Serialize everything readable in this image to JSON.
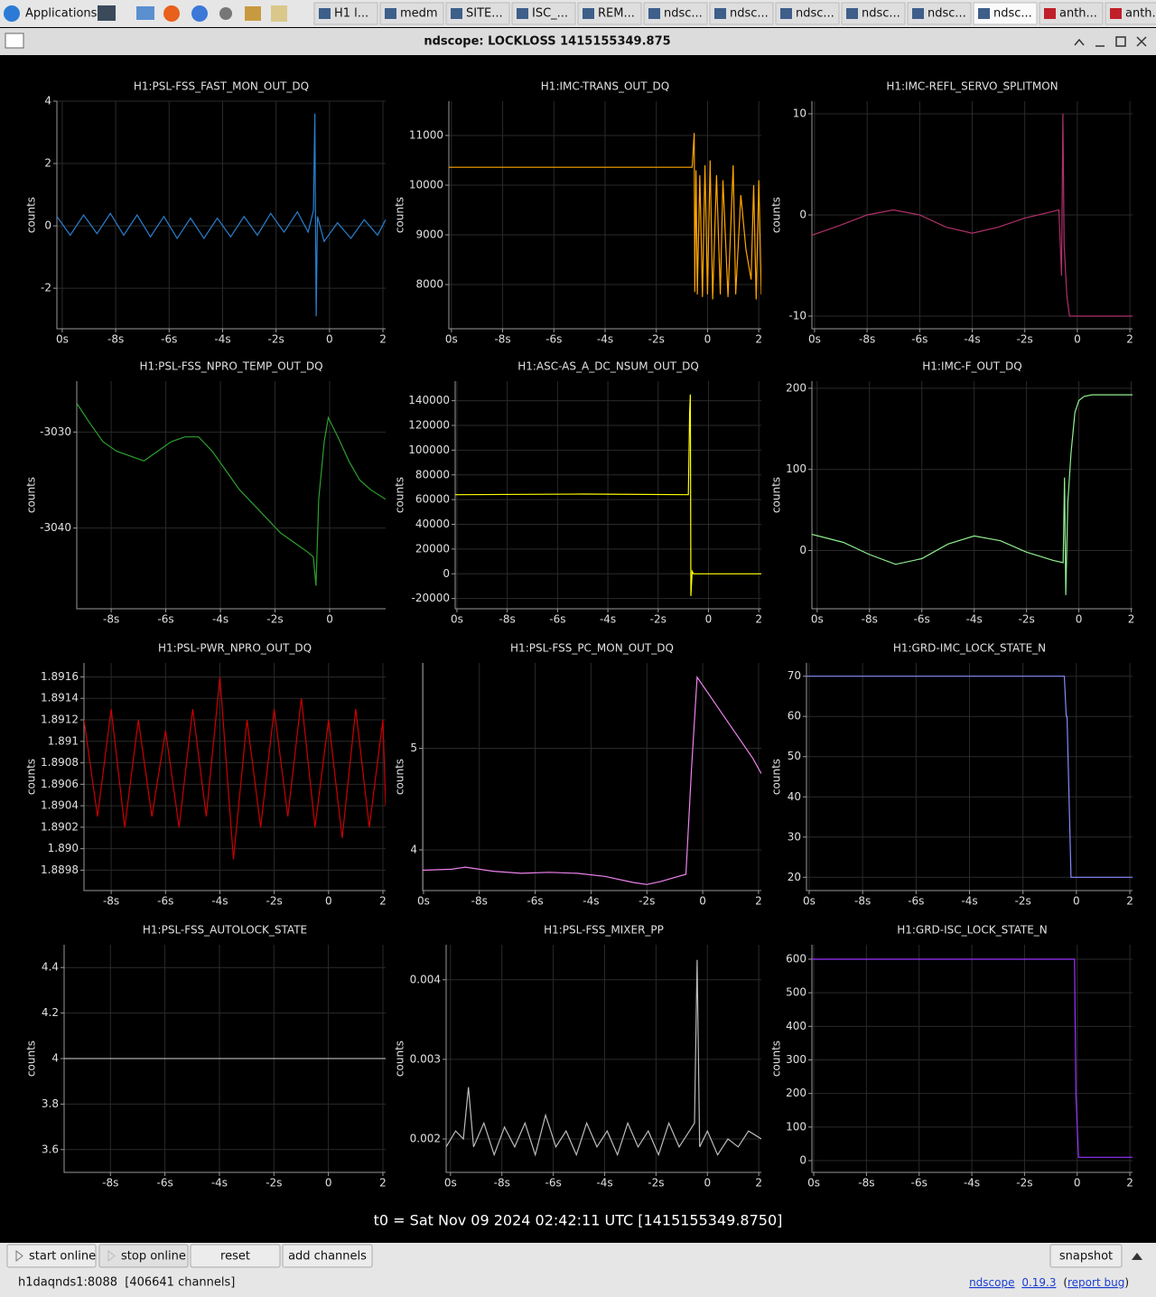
{
  "taskbar": {
    "items": [
      "Applications",
      "H1 l...",
      "medm",
      "SITE...",
      "ISC_...",
      "REM...",
      "ndsc...",
      "ndsc...",
      "ndsc...",
      "ndsc...",
      "ndsc...",
      "ndsc...",
      "anth...",
      "anth..."
    ]
  },
  "window": {
    "title": "ndscope: LOCKLOSS 1415155349.875"
  },
  "chart_data": [
    {
      "type": "line",
      "title": "H1:PSL-FSS_FAST_MON_OUT_DQ",
      "ylabel": "counts",
      "color": "#2a7fcf",
      "xlim": [
        -10.2,
        2.1
      ],
      "ylim": [
        -3.3,
        4.0
      ],
      "yticks": [
        4,
        2,
        0,
        -2
      ],
      "xticks": [
        {
          "value": -10,
          "label": "0s"
        },
        {
          "value": -8,
          "label": "-8s"
        },
        {
          "value": -6,
          "label": "-6s"
        },
        {
          "value": -4,
          "label": "-4s"
        },
        {
          "value": -2,
          "label": "-2s"
        },
        0,
        2
      ],
      "x": [
        -10.2,
        -9.7,
        -9.2,
        -8.7,
        -8.2,
        -7.7,
        -7.2,
        -6.7,
        -6.2,
        -5.7,
        -5.2,
        -4.7,
        -4.2,
        -3.7,
        -3.2,
        -2.7,
        -2.2,
        -1.7,
        -1.2,
        -0.8,
        -0.6,
        -0.55,
        -0.5,
        -0.45,
        -0.2,
        0.3,
        0.8,
        1.3,
        1.8,
        2.1
      ],
      "values": [
        0.3,
        -0.3,
        0.35,
        -0.25,
        0.4,
        -0.3,
        0.35,
        -0.35,
        0.3,
        -0.4,
        0.25,
        -0.4,
        0.25,
        -0.35,
        0.3,
        -0.3,
        0.4,
        -0.2,
        0.45,
        -0.2,
        0.5,
        3.6,
        -2.9,
        0.3,
        -0.5,
        0.1,
        -0.4,
        0.2,
        -0.3,
        0.2
      ]
    },
    {
      "type": "line",
      "title": "H1:IMC-TRANS_OUT_DQ",
      "ylabel": "counts",
      "color": "#ffa500",
      "xlim": [
        -10.1,
        2.1
      ],
      "ylim": [
        7110,
        11690
      ],
      "yticks": [
        11000,
        10000,
        9000,
        8000
      ],
      "xticks": [
        {
          "value": -10,
          "label": "0s"
        },
        {
          "value": -8,
          "label": "-8s"
        },
        {
          "value": -6,
          "label": "-6s"
        },
        {
          "value": -4,
          "label": "-4s"
        },
        {
          "value": -2,
          "label": "-2s"
        },
        0,
        2
      ],
      "x": [
        -10.1,
        -0.6,
        -0.52,
        -0.5,
        -0.45,
        -0.4,
        -0.3,
        -0.2,
        -0.1,
        0,
        0.1,
        0.2,
        0.35,
        0.5,
        0.6,
        0.8,
        1.0,
        1.1,
        1.3,
        1.5,
        1.7,
        1.8,
        1.9,
        2.0,
        2.1
      ],
      "values": [
        10360,
        10360,
        11050,
        7850,
        10300,
        7800,
        10200,
        7750,
        10400,
        7800,
        10500,
        7700,
        10200,
        7800,
        10100,
        7750,
        10400,
        7800,
        9800,
        8700,
        8100,
        10000,
        7700,
        10100,
        7800
      ]
    },
    {
      "type": "line",
      "title": "H1:IMC-REFL_SERVO_SPLITMON",
      "ylabel": "counts",
      "color": "#b0306a",
      "xlim": [
        -10.1,
        2.1
      ],
      "ylim": [
        -11.25,
        11.25
      ],
      "yticks": [
        10,
        0,
        -10
      ],
      "xticks": [
        {
          "value": -10,
          "label": "0s"
        },
        {
          "value": -8,
          "label": "-8s"
        },
        {
          "value": -6,
          "label": "-6s"
        },
        {
          "value": -4,
          "label": "-4s"
        },
        {
          "value": -2,
          "label": "-2s"
        },
        0,
        2
      ],
      "x": [
        -10.1,
        -9,
        -8,
        -7,
        -6,
        -5,
        -4,
        -3,
        -2,
        -1,
        -0.7,
        -0.6,
        -0.55,
        -0.5,
        -0.4,
        -0.3,
        2.1
      ],
      "values": [
        -2,
        -1,
        0,
        0.5,
        0,
        -1.2,
        -1.8,
        -1.2,
        -0.3,
        0.3,
        0.5,
        -6,
        10,
        -3,
        -8,
        -10,
        -10
      ]
    },
    {
      "type": "line",
      "title": "H1:PSL-FSS_NPRO_TEMP_OUT_DQ",
      "ylabel": "counts",
      "color": "#2ca02c",
      "xlim": [
        -9.26,
        2.05
      ],
      "ylim": [
        -3048.4,
        -3024.7
      ],
      "yticks": [
        -3030,
        -3040
      ],
      "xticks": [
        {
          "value": -8,
          "label": "-8s"
        },
        {
          "value": -6,
          "label": "-6s"
        },
        {
          "value": -4,
          "label": "-4s"
        },
        {
          "value": -2,
          "label": "-2s"
        },
        0
      ],
      "x": [
        -9.26,
        -8.8,
        -8.3,
        -7.8,
        -7.3,
        -6.8,
        -6.3,
        -5.8,
        -5.3,
        -4.8,
        -4.3,
        -3.8,
        -3.3,
        -2.8,
        -2.3,
        -1.8,
        -1.3,
        -0.8,
        -0.6,
        -0.5,
        -0.4,
        -0.2,
        -0.05,
        0.3,
        0.7,
        1.1,
        1.5,
        2.05
      ],
      "values": [
        -3027,
        -3029,
        -3031,
        -3032,
        -3032.5,
        -3033,
        -3032,
        -3031,
        -3030.5,
        -3030.5,
        -3032,
        -3034,
        -3036,
        -3037.5,
        -3039,
        -3040.5,
        -3041.5,
        -3042.5,
        -3043,
        -3046,
        -3037,
        -3031,
        -3028.5,
        -3030.5,
        -3033,
        -3035,
        -3036,
        -3037
      ]
    },
    {
      "type": "line",
      "title": "H1:ASC-AS_A_DC_NSUM_OUT_DQ",
      "ylabel": "counts",
      "color": "#ffff00",
      "xlim": [
        -10.07,
        2.1
      ],
      "ylim": [
        -28300,
        155800
      ],
      "yticks": [
        140000,
        120000,
        100000,
        80000,
        60000,
        40000,
        20000,
        0,
        -20000
      ],
      "xticks": [
        {
          "value": -10,
          "label": "0s"
        },
        {
          "value": -8,
          "label": "-8s"
        },
        {
          "value": -6,
          "label": "-6s"
        },
        {
          "value": -4,
          "label": "-4s"
        },
        {
          "value": -2,
          "label": "-2s"
        },
        0,
        2
      ],
      "x": [
        -10.07,
        -5,
        -0.8,
        -0.75,
        -0.72,
        -0.7,
        -0.65,
        -0.6,
        2.1
      ],
      "values": [
        64000,
        64500,
        64000,
        130000,
        145000,
        -18000,
        2000,
        0,
        0
      ]
    },
    {
      "type": "line",
      "title": "H1:IMC-F_OUT_DQ",
      "ylabel": "counts",
      "color": "#90ee90",
      "xlim": [
        -10.2,
        2.05
      ],
      "ylim": [
        -71.8,
        208.8
      ],
      "yticks": [
        200,
        100,
        0
      ],
      "xticks": [
        {
          "value": -10,
          "label": "0s"
        },
        {
          "value": -8,
          "label": "-8s"
        },
        {
          "value": -6,
          "label": "-6s"
        },
        {
          "value": -4,
          "label": "-4s"
        },
        {
          "value": -2,
          "label": "-2s"
        },
        0,
        2
      ],
      "x": [
        -10.2,
        -9,
        -8,
        -7,
        -6,
        -5,
        -4,
        -3,
        -2,
        -1,
        -0.6,
        -0.55,
        -0.5,
        -0.42,
        -0.3,
        -0.15,
        0,
        0.2,
        0.5,
        2.05
      ],
      "values": [
        20,
        10,
        -5,
        -17,
        -10,
        8,
        18,
        12,
        -2,
        -12,
        -15,
        90,
        -55,
        60,
        120,
        170,
        185,
        190,
        192,
        192
      ]
    },
    {
      "type": "line",
      "title": "H1:PSL-PWR_NPRO_OUT_DQ",
      "ylabel": "counts",
      "color": "#cc0000",
      "xlim": [
        -9.0,
        2.1
      ],
      "ylim": [
        1.88961,
        1.89173
      ],
      "yticks": [
        1.8916,
        1.8914,
        1.8912,
        1.891,
        1.8908,
        1.8906,
        1.8904,
        1.8902,
        {
          "value": 1.89,
          "label": "1.890"
        },
        1.8898
      ],
      "xticks": [
        {
          "value": -8,
          "label": "-8s"
        },
        {
          "value": -6,
          "label": "-6s"
        },
        {
          "value": -4,
          "label": "-4s"
        },
        {
          "value": -2,
          "label": "-2s"
        },
        0,
        2
      ],
      "x": [
        -9,
        -8.5,
        -8,
        -7.5,
        -7,
        -6.5,
        -6,
        -5.5,
        -5,
        -4.5,
        -4,
        -3.5,
        -3,
        -2.5,
        -2,
        -1.5,
        -1,
        -0.5,
        0,
        0.5,
        1,
        1.5,
        2,
        2.1
      ],
      "values": [
        1.8912,
        1.8903,
        1.8913,
        1.8902,
        1.8912,
        1.8903,
        1.8911,
        1.8902,
        1.8913,
        1.8903,
        1.8916,
        1.8899,
        1.8912,
        1.8902,
        1.8913,
        1.8903,
        1.8914,
        1.8902,
        1.8912,
        1.8901,
        1.8913,
        1.8902,
        1.8912,
        1.8904
      ]
    },
    {
      "type": "line",
      "title": "H1:PSL-FSS_PC_MON_OUT_DQ",
      "ylabel": "counts",
      "color": "#ee82ee",
      "xlim": [
        -10.03,
        2.1
      ],
      "ylim": [
        3.6,
        5.84
      ],
      "yticks": [
        5,
        4
      ],
      "xticks": [
        {
          "value": -10,
          "label": "0s"
        },
        {
          "value": -8,
          "label": "-8s"
        },
        {
          "value": -6,
          "label": "-6s"
        },
        {
          "value": -4,
          "label": "-4s"
        },
        {
          "value": -2,
          "label": "-2s"
        },
        0,
        2
      ],
      "x": [
        -10.03,
        -9,
        -8.5,
        -7.5,
        -6.5,
        -5.5,
        -4.5,
        -3.5,
        -2.5,
        -2,
        -1.5,
        -1,
        -0.6,
        -0.4,
        -0.2,
        0.3,
        0.8,
        1.3,
        1.8,
        2.1
      ],
      "values": [
        3.8,
        3.81,
        3.83,
        3.79,
        3.77,
        3.78,
        3.77,
        3.74,
        3.68,
        3.66,
        3.69,
        3.73,
        3.76,
        4.8,
        5.7,
        5.5,
        5.3,
        5.1,
        4.9,
        4.75
      ]
    },
    {
      "type": "line",
      "title": "H1:GRD-IMC_LOCK_STATE_N",
      "ylabel": "counts",
      "color": "#8888ff",
      "xlim": [
        -10.1,
        2.1
      ],
      "ylim": [
        16.7,
        73.3
      ],
      "yticks": [
        70,
        60,
        50,
        40,
        30,
        20
      ],
      "xticks": [
        {
          "value": -10,
          "label": "0s"
        },
        {
          "value": -8,
          "label": "-8s"
        },
        {
          "value": -6,
          "label": "-6s"
        },
        {
          "value": -4,
          "label": "-4s"
        },
        {
          "value": -2,
          "label": "-2s"
        },
        0,
        2
      ],
      "x": [
        -10.1,
        -0.45,
        -0.38,
        -0.35,
        -0.2,
        2.1
      ],
      "values": [
        70,
        70,
        60,
        60,
        20,
        20
      ]
    },
    {
      "type": "line",
      "title": "H1:PSL-FSS_AUTOLOCK_STATE",
      "ylabel": "counts",
      "color": "#aaaaaa",
      "xlim": [
        -9.7,
        2.1
      ],
      "ylim": [
        3.5,
        4.5
      ],
      "yticks": [
        4.4,
        4.2,
        4,
        3.8,
        3.6
      ],
      "xticks": [
        {
          "value": -8,
          "label": "-8s"
        },
        {
          "value": -6,
          "label": "-6s"
        },
        {
          "value": -4,
          "label": "-4s"
        },
        {
          "value": -2,
          "label": "-2s"
        },
        0,
        2
      ],
      "x": [
        -9.7,
        2.1
      ],
      "values": [
        4,
        4
      ]
    },
    {
      "type": "line",
      "title": "H1:PSL-FSS_MIXER_PP",
      "ylabel": "counts",
      "color": "#bbbbbb",
      "xlim": [
        -10.17,
        2.1
      ],
      "ylim": [
        0.00158,
        0.00444
      ],
      "yticks": [
        0.004,
        0.003,
        0.002
      ],
      "xticks": [
        {
          "value": -10,
          "label": "0s"
        },
        {
          "value": -8,
          "label": "-8s"
        },
        {
          "value": -6,
          "label": "-6s"
        },
        {
          "value": -4,
          "label": "-4s"
        },
        {
          "value": -2,
          "label": "-2s"
        },
        0,
        2
      ],
      "x": [
        -10.17,
        -9.8,
        -9.5,
        -9.3,
        -9.1,
        -8.7,
        -8.3,
        -7.9,
        -7.5,
        -7.1,
        -6.7,
        -6.3,
        -5.9,
        -5.5,
        -5.1,
        -4.7,
        -4.3,
        -3.9,
        -3.5,
        -3.1,
        -2.7,
        -2.3,
        -1.9,
        -1.5,
        -1.1,
        -0.7,
        -0.5,
        -0.4,
        -0.3,
        0,
        0.4,
        0.8,
        1.2,
        1.6,
        2.1
      ],
      "values": [
        0.0019,
        0.0021,
        0.002,
        0.00265,
        0.0019,
        0.0022,
        0.0018,
        0.00215,
        0.0019,
        0.0022,
        0.0018,
        0.0023,
        0.0019,
        0.0021,
        0.0018,
        0.0022,
        0.0019,
        0.0021,
        0.0018,
        0.0022,
        0.0019,
        0.0021,
        0.0018,
        0.0022,
        0.0019,
        0.0021,
        0.0022,
        0.00425,
        0.0019,
        0.0021,
        0.0018,
        0.002,
        0.0019,
        0.0021,
        0.002
      ]
    },
    {
      "type": "line",
      "title": "H1:GRD-ISC_LOCK_STATE_N",
      "ylabel": "counts",
      "color": "#9933ff",
      "xlim": [
        -10.07,
        2.1
      ],
      "ylim": [
        -35,
        643
      ],
      "yticks": [
        600,
        500,
        400,
        300,
        200,
        100,
        0
      ],
      "xticks": [
        {
          "value": -10,
          "label": "0s"
        },
        {
          "value": -8,
          "label": "-8s"
        },
        {
          "value": -6,
          "label": "-6s"
        },
        {
          "value": -4,
          "label": "-4s"
        },
        {
          "value": -2,
          "label": "-2s"
        },
        0,
        2
      ],
      "x": [
        -10.07,
        -0.1,
        -0.05,
        0.05,
        2.1
      ],
      "values": [
        600,
        600,
        200,
        10,
        10
      ]
    }
  ],
  "t0": "t0 = Sat Nov 09 2024 02:42:11 UTC [1415155349.8750]",
  "buttons": [
    "start online",
    "stop online",
    "reset",
    "add channels",
    "snapshot"
  ],
  "status": "h1daqnds1:8088  [406641 channels]",
  "footer": {
    "app": "ndscope",
    "version": "0.19.3",
    "open": "(",
    "report": "report bug",
    "close": ")"
  }
}
